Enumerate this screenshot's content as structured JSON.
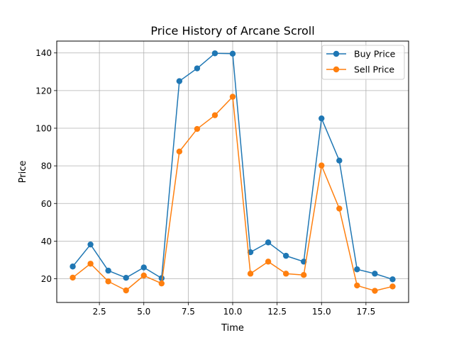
{
  "chart_data": {
    "type": "line",
    "title": "Price History of Arcane Scroll",
    "xlabel": "Time",
    "ylabel": "Price",
    "xlim": [
      0.1,
      19.9
    ],
    "ylim": [
      7.4,
      146.3
    ],
    "xticks": [
      2.5,
      5.0,
      7.5,
      10.0,
      12.5,
      15.0,
      17.5
    ],
    "xtick_labels": [
      "2.5",
      "5.0",
      "7.5",
      "10.0",
      "12.5",
      "15.0",
      "17.5"
    ],
    "yticks": [
      20,
      40,
      60,
      80,
      100,
      120,
      140
    ],
    "ytick_labels": [
      "20",
      "40",
      "60",
      "80",
      "100",
      "120",
      "140"
    ],
    "grid": true,
    "legend_position": "top-right",
    "x": [
      1,
      2,
      3,
      4,
      5,
      6,
      7,
      8,
      9,
      10,
      11,
      12,
      13,
      14,
      15,
      16,
      17,
      18,
      19
    ],
    "series": [
      {
        "name": "Buy Price",
        "color": "#1f77b4",
        "values": [
          26.5,
          38.2,
          24.3,
          20.5,
          26.0,
          20.3,
          125.0,
          131.8,
          139.8,
          139.6,
          34.1,
          39.3,
          32.2,
          29.1,
          105.2,
          82.8,
          25.0,
          22.7,
          19.7
        ]
      },
      {
        "name": "Sell Price",
        "color": "#ff7f0e",
        "values": [
          20.6,
          28.0,
          18.6,
          13.8,
          21.7,
          17.5,
          87.6,
          99.6,
          106.9,
          116.7,
          22.7,
          29.1,
          22.7,
          22.0,
          80.2,
          57.3,
          16.4,
          13.6,
          15.9
        ]
      }
    ]
  }
}
